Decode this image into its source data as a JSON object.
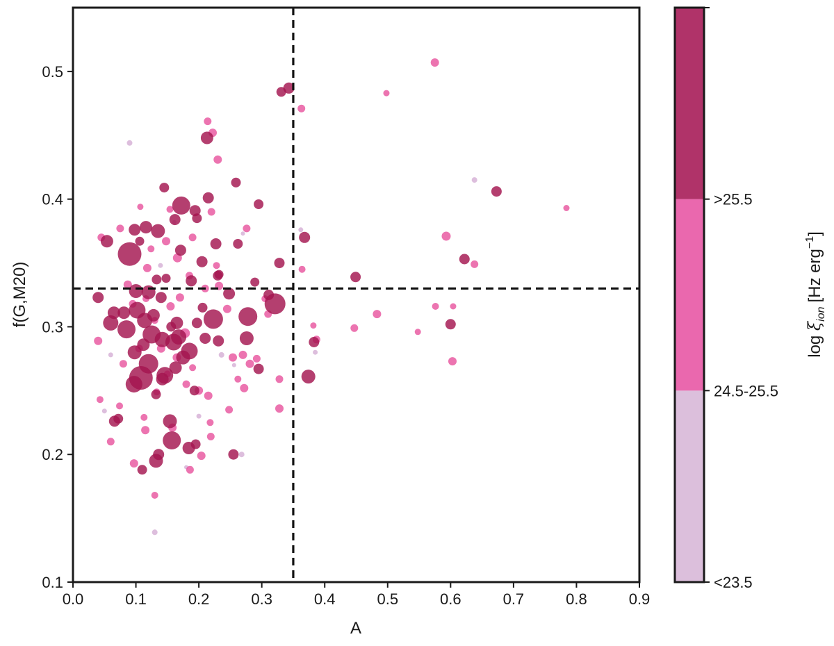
{
  "chart_data": {
    "type": "scatter",
    "xlabel": "A",
    "ylabel": "f(G,M20)",
    "xlim": [
      0.0,
      0.9
    ],
    "ylim": [
      0.1,
      0.55
    ],
    "x_ticks": [
      "0.0",
      "0.1",
      "0.2",
      "0.3",
      "0.4",
      "0.5",
      "0.6",
      "0.7",
      "0.8",
      "0.9"
    ],
    "y_ticks": [
      "0.1",
      "0.2",
      "0.3",
      "0.4",
      "0.5"
    ],
    "x_tick_values": [
      0.0,
      0.1,
      0.2,
      0.3,
      0.4,
      0.5,
      0.6,
      0.7,
      0.8,
      0.9
    ],
    "y_tick_values": [
      0.1,
      0.2,
      0.3,
      0.4,
      0.5
    ],
    "reference_lines": {
      "vertical_x": 0.35,
      "horizontal_y": 0.33,
      "style": "dashed"
    },
    "grid": false,
    "colorbar": {
      "label_prefix": "log ",
      "label_symbol": "ξ",
      "label_subscript": "ion",
      "label_units": "[Hz erg",
      "label_exponent": "−1",
      "label_close": "]",
      "bins": [
        {
          "label": "<23.5",
          "color": "#dcbfdc"
        },
        {
          "label": "24.5-25.5",
          "color": "#ea68ae"
        },
        {
          "label": ">25.5",
          "color": "#b03369"
        }
      ]
    },
    "category_colors": {
      "low": "#d1a8d1",
      "mid": "#e8559f",
      "high": "#a3154f"
    },
    "series": [
      {
        "class": "low",
        "points": [
          [
            0.09,
            0.444,
            8
          ],
          [
            0.638,
            0.415,
            8
          ],
          [
            0.362,
            0.376,
            7
          ],
          [
            0.385,
            0.28,
            7
          ],
          [
            0.268,
            0.2,
            8
          ],
          [
            0.13,
            0.139,
            8
          ],
          [
            0.06,
            0.278,
            7
          ],
          [
            0.05,
            0.234,
            7
          ],
          [
            0.139,
            0.348,
            7
          ],
          [
            0.2,
            0.23,
            7
          ],
          [
            0.236,
            0.278,
            8
          ],
          [
            0.256,
            0.27,
            6
          ],
          [
            0.18,
            0.19,
            6
          ],
          [
            0.161,
            0.382,
            6
          ],
          [
            0.27,
            0.373,
            6
          ]
        ]
      },
      {
        "class": "mid",
        "points": [
          [
            0.575,
            0.507,
            12
          ],
          [
            0.498,
            0.483,
            9
          ],
          [
            0.363,
            0.471,
            11
          ],
          [
            0.214,
            0.461,
            11
          ],
          [
            0.222,
            0.452,
            12
          ],
          [
            0.23,
            0.431,
            12
          ],
          [
            0.593,
            0.371,
            13
          ],
          [
            0.638,
            0.349,
            11
          ],
          [
            0.784,
            0.393,
            9
          ],
          [
            0.576,
            0.316,
            10
          ],
          [
            0.604,
            0.316,
            9
          ],
          [
            0.548,
            0.296,
            9
          ],
          [
            0.447,
            0.299,
            11
          ],
          [
            0.483,
            0.31,
            12
          ],
          [
            0.382,
            0.301,
            9
          ],
          [
            0.603,
            0.273,
            12
          ],
          [
            0.387,
            0.29,
            11
          ],
          [
            0.328,
            0.259,
            11
          ],
          [
            0.328,
            0.236,
            12
          ],
          [
            0.364,
            0.345,
            10
          ],
          [
            0.045,
            0.37,
            11
          ],
          [
            0.04,
            0.289,
            12
          ],
          [
            0.043,
            0.243,
            10
          ],
          [
            0.06,
            0.21,
            11
          ],
          [
            0.074,
            0.238,
            10
          ],
          [
            0.075,
            0.377,
            11
          ],
          [
            0.087,
            0.333,
            12
          ],
          [
            0.097,
            0.193,
            12
          ],
          [
            0.107,
            0.394,
            9
          ],
          [
            0.113,
            0.229,
            10
          ],
          [
            0.115,
            0.219,
            12
          ],
          [
            0.118,
            0.346,
            12
          ],
          [
            0.124,
            0.361,
            10
          ],
          [
            0.13,
            0.168,
            10
          ],
          [
            0.133,
            0.249,
            10
          ],
          [
            0.148,
            0.367,
            12
          ],
          [
            0.154,
            0.392,
            10
          ],
          [
            0.158,
            0.221,
            12
          ],
          [
            0.166,
            0.354,
            13
          ],
          [
            0.17,
            0.323,
            12
          ],
          [
            0.178,
            0.295,
            14
          ],
          [
            0.18,
            0.255,
            11
          ],
          [
            0.186,
            0.188,
            11
          ],
          [
            0.19,
            0.37,
            11
          ],
          [
            0.19,
            0.268,
            10
          ],
          [
            0.2,
            0.25,
            12
          ],
          [
            0.204,
            0.199,
            12
          ],
          [
            0.21,
            0.33,
            11
          ],
          [
            0.215,
            0.246,
            12
          ],
          [
            0.218,
            0.225,
            10
          ],
          [
            0.219,
            0.214,
            11
          ],
          [
            0.22,
            0.39,
            11
          ],
          [
            0.228,
            0.348,
            10
          ],
          [
            0.232,
            0.332,
            12
          ],
          [
            0.245,
            0.314,
            12
          ],
          [
            0.248,
            0.235,
            11
          ],
          [
            0.254,
            0.276,
            12
          ],
          [
            0.262,
            0.259,
            10
          ],
          [
            0.27,
            0.278,
            12
          ],
          [
            0.272,
            0.252,
            12
          ],
          [
            0.276,
            0.377,
            11
          ],
          [
            0.281,
            0.271,
            12
          ],
          [
            0.292,
            0.275,
            11
          ],
          [
            0.305,
            0.322,
            10
          ],
          [
            0.31,
            0.31,
            11
          ],
          [
            0.165,
            0.276,
            12
          ],
          [
            0.095,
            0.318,
            11
          ],
          [
            0.14,
            0.283,
            12
          ],
          [
            0.105,
            0.283,
            11
          ],
          [
            0.13,
            0.305,
            10
          ],
          [
            0.08,
            0.271,
            11
          ],
          [
            0.15,
            0.263,
            10
          ],
          [
            0.185,
            0.34,
            11
          ],
          [
            0.155,
            0.316,
            12
          ],
          [
            0.116,
            0.322,
            10
          ]
        ]
      },
      {
        "class": "high",
        "points": [
          [
            0.343,
            0.487,
            16
          ],
          [
            0.331,
            0.484,
            14
          ],
          [
            0.213,
            0.448,
            18
          ],
          [
            0.673,
            0.406,
            15
          ],
          [
            0.172,
            0.395,
            26
          ],
          [
            0.259,
            0.413,
            14
          ],
          [
            0.145,
            0.409,
            14
          ],
          [
            0.295,
            0.396,
            14
          ],
          [
            0.215,
            0.401,
            16
          ],
          [
            0.194,
            0.391,
            16
          ],
          [
            0.162,
            0.384,
            16
          ],
          [
            0.197,
            0.385,
            14
          ],
          [
            0.116,
            0.378,
            18
          ],
          [
            0.135,
            0.375,
            20
          ],
          [
            0.098,
            0.376,
            17
          ],
          [
            0.09,
            0.357,
            34
          ],
          [
            0.262,
            0.365,
            14
          ],
          [
            0.227,
            0.365,
            16
          ],
          [
            0.368,
            0.37,
            16
          ],
          [
            0.054,
            0.367,
            18
          ],
          [
            0.106,
            0.367,
            13
          ],
          [
            0.171,
            0.36,
            16
          ],
          [
            0.205,
            0.351,
            16
          ],
          [
            0.328,
            0.35,
            15
          ],
          [
            0.622,
            0.353,
            15
          ],
          [
            0.449,
            0.339,
            15
          ],
          [
            0.23,
            0.34,
            14
          ],
          [
            0.188,
            0.336,
            16
          ],
          [
            0.133,
            0.337,
            14
          ],
          [
            0.04,
            0.323,
            16
          ],
          [
            0.06,
            0.303,
            22
          ],
          [
            0.065,
            0.311,
            18
          ],
          [
            0.1,
            0.328,
            20
          ],
          [
            0.12,
            0.327,
            20
          ],
          [
            0.14,
            0.323,
            16
          ],
          [
            0.165,
            0.303,
            18
          ],
          [
            0.197,
            0.303,
            15
          ],
          [
            0.102,
            0.313,
            24
          ],
          [
            0.085,
            0.298,
            26
          ],
          [
            0.114,
            0.305,
            22
          ],
          [
            0.125,
            0.294,
            26
          ],
          [
            0.142,
            0.29,
            22
          ],
          [
            0.16,
            0.288,
            24
          ],
          [
            0.175,
            0.276,
            20
          ],
          [
            0.098,
            0.28,
            20
          ],
          [
            0.12,
            0.271,
            28
          ],
          [
            0.146,
            0.262,
            24
          ],
          [
            0.097,
            0.255,
            24
          ],
          [
            0.108,
            0.26,
            34
          ],
          [
            0.066,
            0.226,
            16
          ],
          [
            0.072,
            0.228,
            14
          ],
          [
            0.154,
            0.226,
            20
          ],
          [
            0.157,
            0.211,
            26
          ],
          [
            0.184,
            0.205,
            18
          ],
          [
            0.132,
            0.195,
            20
          ],
          [
            0.136,
            0.2,
            16
          ],
          [
            0.11,
            0.188,
            14
          ],
          [
            0.195,
            0.208,
            14
          ],
          [
            0.255,
            0.2,
            15
          ],
          [
            0.223,
            0.306,
            28
          ],
          [
            0.248,
            0.326,
            17
          ],
          [
            0.278,
            0.308,
            27
          ],
          [
            0.321,
            0.318,
            30
          ],
          [
            0.276,
            0.291,
            20
          ],
          [
            0.295,
            0.267,
            15
          ],
          [
            0.231,
            0.289,
            16
          ],
          [
            0.21,
            0.291,
            16
          ],
          [
            0.185,
            0.281,
            24
          ],
          [
            0.193,
            0.25,
            14
          ],
          [
            0.374,
            0.261,
            20
          ],
          [
            0.6,
            0.302,
            15
          ],
          [
            0.383,
            0.288,
            15
          ],
          [
            0.132,
            0.247,
            14
          ],
          [
            0.163,
            0.268,
            18
          ],
          [
            0.206,
            0.315,
            14
          ],
          [
            0.232,
            0.341,
            13
          ],
          [
            0.311,
            0.325,
            15
          ],
          [
            0.289,
            0.335,
            13
          ],
          [
            0.148,
            0.338,
            13
          ],
          [
            0.128,
            0.309,
            18
          ],
          [
            0.081,
            0.311,
            18
          ],
          [
            0.168,
            0.292,
            22
          ],
          [
            0.142,
            0.259,
            18
          ],
          [
            0.112,
            0.286,
            18
          ],
          [
            0.156,
            0.3,
            14
          ]
        ]
      }
    ]
  }
}
